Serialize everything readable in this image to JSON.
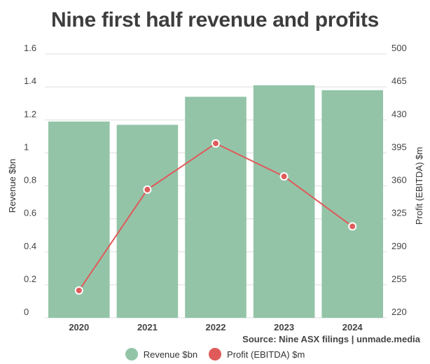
{
  "title": "Nine first half revenue and profits",
  "source": "Source: Nine ASX filings | unmade.media",
  "colors": {
    "revenue": "#93c4a8",
    "profit": "#e05a5a",
    "grid": "#dddddd"
  },
  "chart_data": {
    "type": "bar",
    "title": "Nine first half revenue and profits",
    "categories": [
      "2020",
      "2021",
      "2022",
      "2023",
      "2024"
    ],
    "series": [
      {
        "name": "Revenue $bn",
        "type": "bar",
        "axis": "left",
        "values": [
          1.19,
          1.17,
          1.34,
          1.41,
          1.38
        ]
      },
      {
        "name": "Profit (EBITDA) $m",
        "type": "line",
        "axis": "right",
        "values": [
          249,
          356,
          405,
          370,
          317
        ]
      }
    ],
    "y_left": {
      "label": "Revenue $bn",
      "ylim": [
        0,
        1.6
      ],
      "ticks": [
        "0",
        "0.2",
        "0.4",
        "0.6",
        "0.8",
        "1",
        "1.2",
        "1.4",
        "1.6"
      ]
    },
    "y_right": {
      "label": "Profit (EBITDA) $m",
      "ylim": [
        220,
        500
      ],
      "ticks": [
        "220",
        "255",
        "290",
        "325",
        "360",
        "395",
        "430",
        "465",
        "500"
      ]
    },
    "grid": true,
    "legend": "bottom-center"
  }
}
